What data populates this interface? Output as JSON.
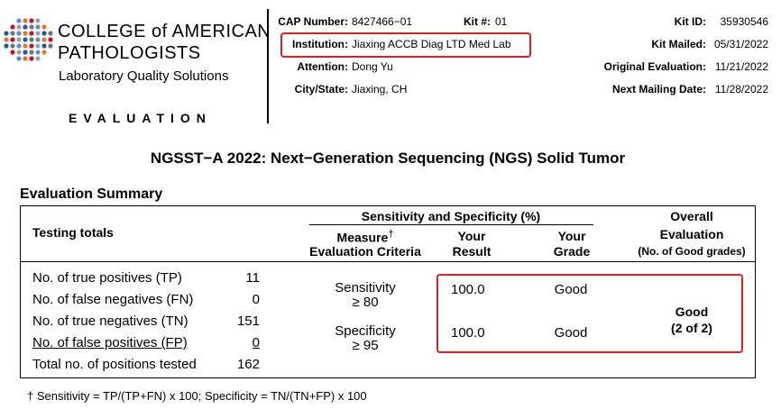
{
  "header": {
    "org": [
      "COLLEGE of AMERICAN",
      "PATHOLOGISTS"
    ],
    "tagline": "Laboratory Quality Solutions",
    "section": "EVALUATION",
    "left_fields": [
      {
        "label": "CAP Number:",
        "value": "8427466−01"
      },
      {
        "label": "Institution:",
        "value": "Jiaxing ACCB Diag LTD Med Lab"
      },
      {
        "label": "Attention:",
        "value": "Dong Yu"
      },
      {
        "label": "City/State:",
        "value": "Jiaxing, CH"
      }
    ],
    "kit_number": {
      "label": "Kit #:",
      "value": "01"
    },
    "right_fields": [
      {
        "label": "Kit ID:",
        "value": "35930546"
      },
      {
        "label": "Kit Mailed:",
        "value": "05/31/2022"
      },
      {
        "label": "Original Evaluation:",
        "value": "11/21/2022"
      },
      {
        "label": "Next Mailing Date:",
        "value": "11/28/2022"
      }
    ]
  },
  "title": "NGSST−A 2022: Next−Generation Sequencing (NGS) Solid Tumor",
  "summary": {
    "heading": "Evaluation Summary",
    "table": {
      "testing_header": "Testing totals",
      "group_header": "Sensitivity and Specificity (%)",
      "measure_header": [
        "Measure",
        "†",
        "Evaluation Criteria"
      ],
      "result_header": [
        "Your",
        "Result"
      ],
      "grade_header": [
        "Your",
        "Grade"
      ],
      "overall_header": [
        "Overall",
        "Evaluation",
        "(No. of Good grades)"
      ],
      "totals": [
        [
          "No. of true positives (TP)",
          "11"
        ],
        [
          "No. of false negatives (FN)",
          "0"
        ],
        [
          "No. of true negatives (TN)",
          "151"
        ],
        [
          "No. of false positives (FP)",
          "0"
        ],
        [
          "Total no. of positions tested",
          "162"
        ]
      ],
      "measures": [
        {
          "name": "Sensitivity",
          "criteria": "≥ 80",
          "result": "100.0",
          "grade": "Good"
        },
        {
          "name": "Specificity",
          "criteria": "≥ 95",
          "result": "100.0",
          "grade": "Good"
        }
      ],
      "overall": [
        "Good",
        "(2 of 2)"
      ]
    }
  },
  "footnote": "† Sensitivity = TP/(TP+FN) x 100; Specificity = TN/(TN+FP) x 100"
}
